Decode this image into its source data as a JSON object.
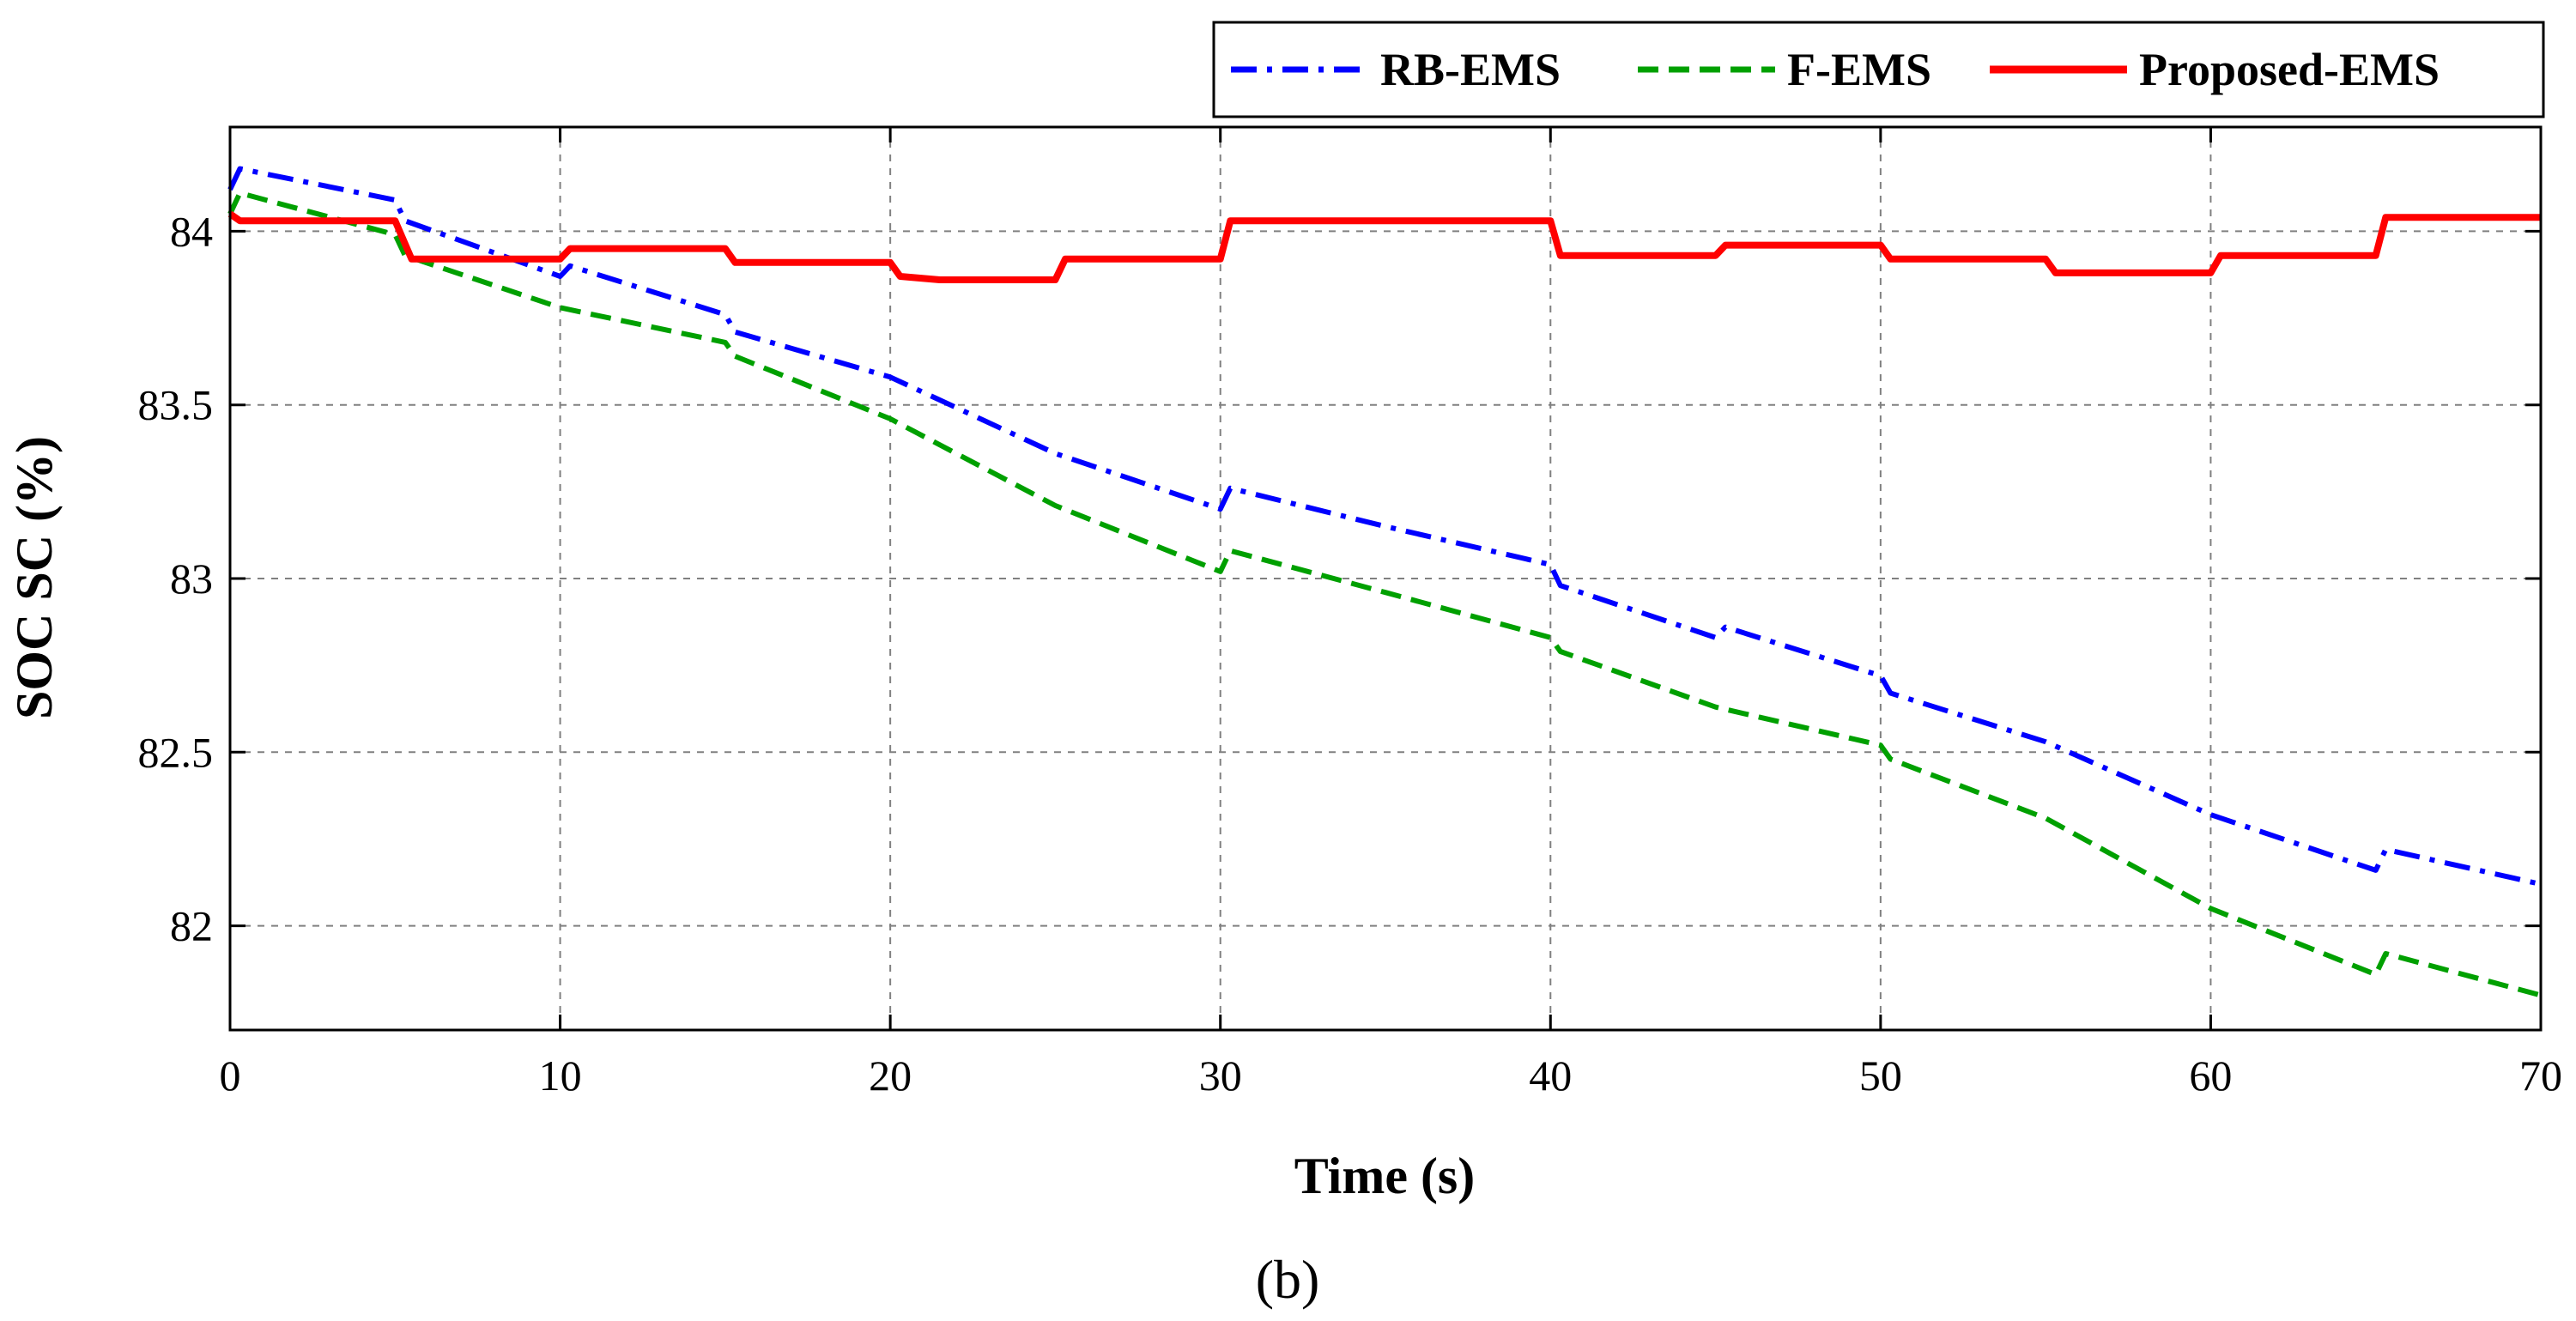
{
  "chart_data": {
    "type": "line",
    "title": "",
    "panel_label": "(b)",
    "xlabel": "Time (s)",
    "ylabel": "SOC SC (%)",
    "xlim": [
      0,
      70
    ],
    "ylim": [
      81.7,
      84.3
    ],
    "x_ticks": [
      0,
      10,
      20,
      30,
      40,
      50,
      60,
      70
    ],
    "y_ticks": [
      82,
      82.5,
      83,
      83.5,
      84
    ],
    "grid": true,
    "legend_position": "top-right, outside plot area",
    "series": [
      {
        "name": "RB-EMS",
        "color": "#0000ff",
        "line_style": "dash-dot",
        "x": [
          0,
          0.3,
          5,
          5.3,
          10,
          10.3,
          15,
          15.3,
          20,
          25,
          30,
          30.3,
          35,
          40,
          40.3,
          45,
          45.3,
          50,
          50.3,
          55,
          60,
          65,
          65.3,
          70
        ],
        "values": [
          84.12,
          84.18,
          84.09,
          84.03,
          83.87,
          83.9,
          83.76,
          83.71,
          83.58,
          83.36,
          83.2,
          83.26,
          83.15,
          83.04,
          82.98,
          82.83,
          82.86,
          82.72,
          82.67,
          82.53,
          82.32,
          82.16,
          82.22,
          82.12
        ]
      },
      {
        "name": "F-EMS",
        "color": "#00a000",
        "line_style": "dashed",
        "x": [
          0,
          0.3,
          5,
          5.3,
          10,
          15,
          15.3,
          20,
          25,
          30,
          30.3,
          35,
          40,
          40.3,
          45,
          50,
          50.3,
          55,
          60,
          65,
          65.3,
          70
        ],
        "values": [
          84.05,
          84.11,
          83.99,
          83.93,
          83.78,
          83.68,
          83.64,
          83.46,
          83.21,
          83.02,
          83.08,
          82.96,
          82.83,
          82.79,
          82.63,
          82.52,
          82.48,
          82.31,
          82.05,
          81.86,
          81.92,
          81.8
        ]
      },
      {
        "name": "Proposed-EMS",
        "color": "#ff0000",
        "line_style": "solid",
        "x": [
          0,
          0.3,
          5,
          5.5,
          10,
          10.3,
          15,
          15.3,
          20,
          20.3,
          21.5,
          25,
          25.3,
          30,
          30.3,
          40,
          40.3,
          45,
          45.3,
          50,
          50.3,
          55,
          55.3,
          60,
          60.3,
          65,
          65.3,
          70
        ],
        "values": [
          84.05,
          84.03,
          84.03,
          83.92,
          83.92,
          83.95,
          83.95,
          83.91,
          83.91,
          83.87,
          83.86,
          83.86,
          83.92,
          83.92,
          84.03,
          84.03,
          83.93,
          83.93,
          83.96,
          83.96,
          83.92,
          83.92,
          83.88,
          83.88,
          83.93,
          83.93,
          84.04,
          84.04
        ]
      }
    ]
  }
}
